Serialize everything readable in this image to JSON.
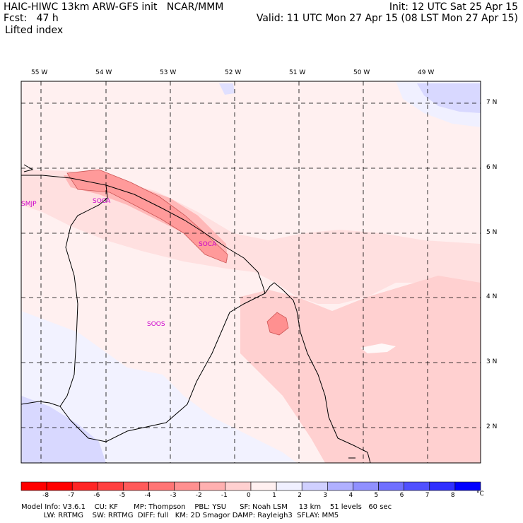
{
  "header": {
    "model_line": "HAIC-HIWC 13km ARW-GFS init   NCAR/MMM",
    "fcst_label": "Fcst:",
    "fcst_value": "47 h",
    "field": "Lifted index",
    "init": "Init: 12 UTC Sat 25 Apr 15",
    "valid": "Valid: 11 UTC Mon 27 Apr 15 (08 LST Mon 27 Apr 15)"
  },
  "map": {
    "lon_labels": [
      "55 W",
      "54 W",
      "53 W",
      "52 W",
      "51 W",
      "50 W",
      "49 W"
    ],
    "lat_labels": [
      "7 N",
      "6 N",
      "5 N",
      "4 N",
      "3 N",
      "2 N"
    ],
    "stations": [
      "SMJP",
      "SOCA",
      "SOCA",
      "SOOS"
    ]
  },
  "colorbar": {
    "labels": [
      "-8",
      "-7",
      "-6",
      "-5",
      "-4",
      "-3",
      "-2",
      "-1",
      "0",
      "1",
      "2",
      "3",
      "4",
      "5",
      "6",
      "7",
      "8"
    ],
    "unit": "°C",
    "colors": [
      "#ff0000",
      "#ff2525",
      "#ff4040",
      "#ff5a5a",
      "#ff7575",
      "#ff9090",
      "#ffb0b0",
      "#ffd0d0",
      "#fff0f0",
      "#f0f0ff",
      "#d0d0ff",
      "#b0b0ff",
      "#9090ff",
      "#7070ff",
      "#5050ff",
      "#3030ff",
      "#0000ff"
    ]
  },
  "footer": {
    "line1": "Model Info: V3.6.1    CU: KF       MP: Thompson    PBL: YSU      SF: Noah LSM     13 km    51 levels   60 sec",
    "line2": "          LW: RRTMG    SW: RRTMG  DIFF: full   KM: 2D Smagor DAMP: Rayleigh3  SFLAY: MM5"
  }
}
